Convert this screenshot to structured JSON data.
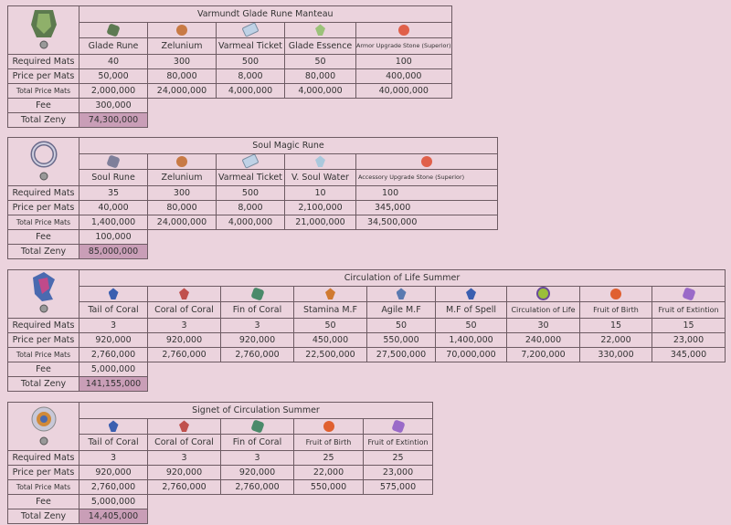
{
  "sections": [
    {
      "title": "Varmundt Glade Rune Manteau",
      "logo_icon": "manteau-icon",
      "materials": [
        {
          "name": "Glade Rune",
          "icon": "glade-rune-icon",
          "required": "40",
          "price": "50,000",
          "total": "2,000,000"
        },
        {
          "name": "Zelunium",
          "icon": "zelunium-icon",
          "required": "300",
          "price": "80,000",
          "total": "24,000,000"
        },
        {
          "name": "Varmeal Ticket",
          "icon": "varmeal-ticket-icon",
          "required": "500",
          "price": "8,000",
          "total": "4,000,000"
        },
        {
          "name": "Glade Essence",
          "icon": "glade-essence-icon",
          "required": "50",
          "price": "80,000",
          "total": "4,000,000"
        },
        {
          "name": "Armor Upgrade Stone (Superior)",
          "icon": "armor-upgrade-stone-icon",
          "required": "100",
          "price": "400,000",
          "total": "40,000,000"
        }
      ],
      "fee": "300,000",
      "total_zeny": "74,300,000"
    },
    {
      "title": "Soul Magic Rune",
      "logo_icon": "soul-rune-ring-icon",
      "materials": [
        {
          "name": "Soul Rune",
          "icon": "soul-rune-icon",
          "required": "35",
          "price": "40,000",
          "total": "1,400,000"
        },
        {
          "name": "Zelunium",
          "icon": "zelunium-icon",
          "required": "300",
          "price": "80,000",
          "total": "24,000,000"
        },
        {
          "name": "Varmeal Ticket",
          "icon": "varmeal-ticket-icon",
          "required": "500",
          "price": "8,000",
          "total": "4,000,000"
        },
        {
          "name": "V. Soul Water",
          "icon": "soul-water-icon",
          "required": "10",
          "price": "2,100,000",
          "total": "21,000,000"
        },
        {
          "name": "Accessory Upgrade Stone (Superior)",
          "icon": "accessory-upgrade-stone-icon",
          "required": "100",
          "price": "345,000",
          "total": "34,500,000"
        }
      ],
      "fee": "100,000",
      "total_zeny": "85,000,000"
    },
    {
      "title": "Circulation of Life Summer",
      "logo_icon": "circulation-of-life-costume-icon",
      "materials": [
        {
          "name": "Tail of Coral",
          "icon": "tail-of-coral-icon",
          "required": "3",
          "price": "920,000",
          "total": "2,760,000"
        },
        {
          "name": "Coral of Coral",
          "icon": "coral-of-coral-icon",
          "required": "3",
          "price": "920,000",
          "total": "2,760,000"
        },
        {
          "name": "Fin of Coral",
          "icon": "fin-of-coral-icon",
          "required": "3",
          "price": "920,000",
          "total": "2,760,000"
        },
        {
          "name": "Stamina M.F",
          "icon": "stamina-mf-icon",
          "required": "50",
          "price": "450,000",
          "total": "22,500,000"
        },
        {
          "name": "Agile M.F",
          "icon": "agile-mf-icon",
          "required": "50",
          "price": "550,000",
          "total": "27,500,000"
        },
        {
          "name": "M.F of Spell",
          "icon": "mf-of-spell-icon",
          "required": "50",
          "price": "1,400,000",
          "total": "70,000,000"
        },
        {
          "name": "Circulation of Life",
          "icon": "circulation-of-life-icon",
          "required": "30",
          "price": "240,000",
          "total": "7,200,000"
        },
        {
          "name": "Fruit of Birth",
          "icon": "fruit-of-birth-icon",
          "required": "15",
          "price": "22,000",
          "total": "330,000"
        },
        {
          "name": "Fruit of Extintion",
          "icon": "fruit-of-extintion-icon",
          "required": "15",
          "price": "23,000",
          "total": "345,000"
        }
      ],
      "fee": "5,000,000",
      "total_zeny": "141,155,000"
    },
    {
      "title": "Signet of Circulation Summer",
      "logo_icon": "signet-of-circulation-icon",
      "materials": [
        {
          "name": "Tail of Coral",
          "icon": "tail-of-coral-icon",
          "required": "3",
          "price": "920,000",
          "total": "2,760,000"
        },
        {
          "name": "Coral of Coral",
          "icon": "coral-of-coral-icon",
          "required": "3",
          "price": "920,000",
          "total": "2,760,000"
        },
        {
          "name": "Fin of Coral",
          "icon": "fin-of-coral-icon",
          "required": "3",
          "price": "920,000",
          "total": "2,760,000"
        },
        {
          "name": "Fruit of Birth",
          "icon": "fruit-of-birth-icon",
          "required": "25",
          "price": "22,000",
          "total": "550,000"
        },
        {
          "name": "Fruit of Extintion",
          "icon": "fruit-of-extintion-icon",
          "required": "25",
          "price": "23,000",
          "total": "575,000"
        }
      ],
      "fee": "5,000,000",
      "total_zeny": "14,405,000"
    }
  ],
  "labels": {
    "required": "Required Mats",
    "price": "Price per Mats",
    "total": "Total Price Mats",
    "fee": "Fee",
    "total_zeny": "Total Zeny"
  },
  "icon_colors": {
    "glade-rune-icon": "#5d7a52",
    "zelunium-icon": "#c87a45",
    "varmeal-ticket-icon": "#bfd2e6",
    "glade-essence-icon": "#9cc27a",
    "armor-upgrade-stone-icon": "#e0604a",
    "soul-rune-icon": "#7f7f9a",
    "soul-water-icon": "#aac8dc",
    "accessory-upgrade-stone-icon": "#e0604a",
    "tail-of-coral-icon": "#3a5fb0",
    "coral-of-coral-icon": "#c0504d",
    "fin-of-coral-icon": "#4a8a6a",
    "stamina-mf-icon": "#d07a30",
    "agile-mf-icon": "#5a7ab0",
    "mf-of-spell-icon": "#3a5fb0",
    "circulation-of-life-icon": "#9bbf3a",
    "fruit-of-birth-icon": "#e06030",
    "fruit-of-extintion-icon": "#9a6ac8"
  }
}
